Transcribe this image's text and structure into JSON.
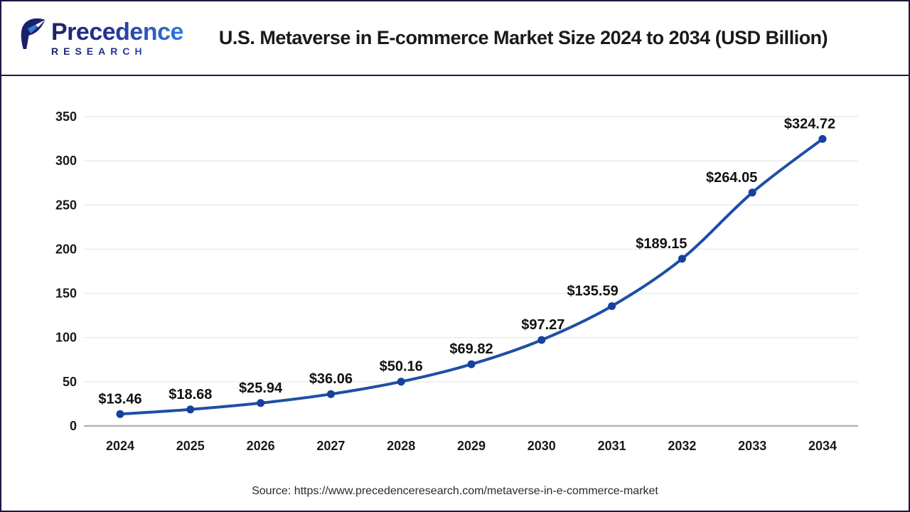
{
  "header": {
    "logo": {
      "brand_top": "Precedence",
      "brand_bottom": "RESEARCH"
    },
    "title": "U.S. Metaverse in E-commerce Market Size 2024 to 2034 (USD Billion)"
  },
  "chart_data": {
    "type": "line",
    "title": "U.S. Metaverse in E-commerce Market Size 2024 to 2034 (USD Billion)",
    "categories": [
      "2024",
      "2025",
      "2026",
      "2027",
      "2028",
      "2029",
      "2030",
      "2031",
      "2032",
      "2033",
      "2034"
    ],
    "values": [
      13.46,
      18.68,
      25.94,
      36.06,
      50.16,
      69.82,
      97.27,
      135.59,
      189.15,
      264.05,
      324.72
    ],
    "point_labels": [
      "$13.46",
      "$18.68",
      "$25.94",
      "$36.06",
      "$50.16",
      "$69.82",
      "$97.27",
      "$135.59",
      "$189.15",
      "$264.05",
      "$324.72"
    ],
    "label_dx": [
      0,
      0,
      0,
      0,
      0,
      0,
      2,
      -27,
      -29,
      -29,
      -18
    ],
    "xlabel": "",
    "ylabel": "",
    "ylim": [
      0,
      350
    ],
    "yticks": [
      0,
      50,
      100,
      150,
      200,
      250,
      300,
      350
    ],
    "grid": true,
    "legend": "none",
    "line_color": "#1d4fa5",
    "marker_color": "#16419c",
    "grid_color": "#ebebeb",
    "axis_color": "#b3b3b3",
    "tick_color": "#1a1a1a"
  },
  "footer": {
    "source_text": "Source: https://www.precedenceresearch.com/metaverse-in-e-commerce-market"
  },
  "colors": {
    "navy": "#1b2168",
    "blue": "#2f7cd9",
    "border": "#191942"
  }
}
